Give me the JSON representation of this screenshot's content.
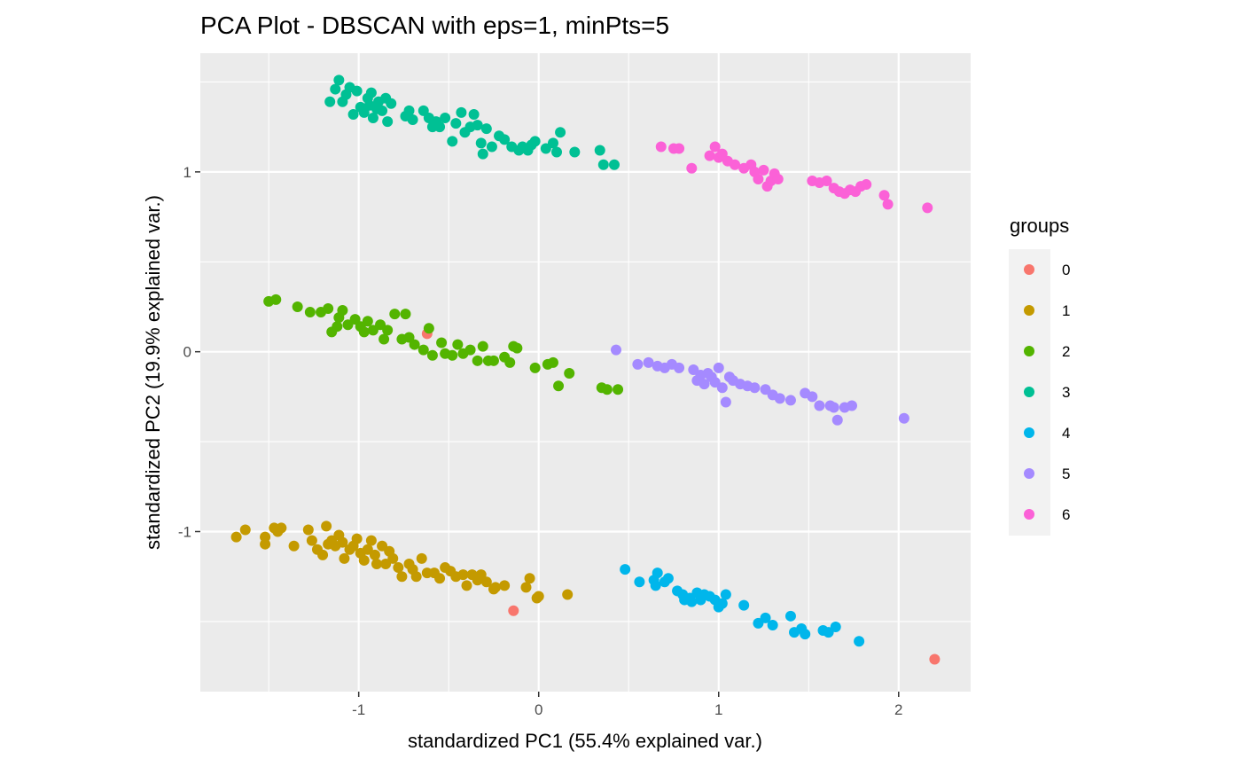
{
  "chart_data": {
    "type": "scatter",
    "title": "PCA Plot - DBSCAN with eps=1, minPts=5",
    "xlabel": "standardized PC1 (55.4% explained var.)",
    "ylabel": "standardized PC2 (19.9% explained var.)",
    "xlim": [
      -1.88,
      2.4
    ],
    "ylim": [
      -1.89,
      1.66
    ],
    "x_ticks": [
      -1,
      0,
      1,
      2
    ],
    "x_tick_labels": [
      "-1",
      "0",
      "1",
      "2"
    ],
    "y_ticks": [
      -1,
      0,
      1
    ],
    "y_tick_labels": [
      "-1",
      "0",
      "1"
    ],
    "grid": true,
    "background": "#EBEBEB",
    "legend": {
      "title": "groups",
      "position": "right"
    },
    "series": [
      {
        "name": "0",
        "color": "#F8766D",
        "points": [
          [
            -0.62,
            0.1
          ],
          [
            -0.14,
            -1.44
          ],
          [
            2.2,
            -1.71
          ]
        ]
      },
      {
        "name": "1",
        "color": "#C49A00",
        "points": [
          [
            -1.68,
            -1.03
          ],
          [
            -1.63,
            -0.99
          ],
          [
            -1.52,
            -1.03
          ],
          [
            -1.52,
            -1.07
          ],
          [
            -1.47,
            -0.98
          ],
          [
            -1.45,
            -1.0
          ],
          [
            -1.43,
            -0.98
          ],
          [
            -1.36,
            -1.08
          ],
          [
            -1.28,
            -0.99
          ],
          [
            -1.26,
            -1.05
          ],
          [
            -1.23,
            -1.1
          ],
          [
            -1.2,
            -1.13
          ],
          [
            -1.18,
            -0.97
          ],
          [
            -1.17,
            -1.07
          ],
          [
            -1.15,
            -1.05
          ],
          [
            -1.13,
            -1.08
          ],
          [
            -1.11,
            -1.02
          ],
          [
            -1.09,
            -1.06
          ],
          [
            -1.08,
            -1.15
          ],
          [
            -1.05,
            -1.1
          ],
          [
            -1.03,
            -1.08
          ],
          [
            -1.01,
            -1.04
          ],
          [
            -0.99,
            -1.12
          ],
          [
            -0.97,
            -1.16
          ],
          [
            -0.95,
            -1.1
          ],
          [
            -0.93,
            -1.05
          ],
          [
            -0.91,
            -1.13
          ],
          [
            -0.9,
            -1.18
          ],
          [
            -0.87,
            -1.08
          ],
          [
            -0.85,
            -1.18
          ],
          [
            -0.83,
            -1.11
          ],
          [
            -0.81,
            -1.15
          ],
          [
            -0.78,
            -1.2
          ],
          [
            -0.76,
            -1.25
          ],
          [
            -0.72,
            -1.18
          ],
          [
            -0.7,
            -1.21
          ],
          [
            -0.68,
            -1.25
          ],
          [
            -0.65,
            -1.15
          ],
          [
            -0.62,
            -1.23
          ],
          [
            -0.58,
            -1.23
          ],
          [
            -0.55,
            -1.26
          ],
          [
            -0.52,
            -1.2
          ],
          [
            -0.49,
            -1.22
          ],
          [
            -0.46,
            -1.25
          ],
          [
            -0.42,
            -1.24
          ],
          [
            -0.4,
            -1.3
          ],
          [
            -0.37,
            -1.24
          ],
          [
            -0.34,
            -1.27
          ],
          [
            -0.32,
            -1.24
          ],
          [
            -0.29,
            -1.28
          ],
          [
            -0.25,
            -1.32
          ],
          [
            -0.24,
            -1.31
          ],
          [
            -0.19,
            -1.3
          ],
          [
            -0.07,
            -1.31
          ],
          [
            -0.05,
            -1.26
          ],
          [
            -0.01,
            -1.37
          ],
          [
            0.0,
            -1.36
          ],
          [
            0.16,
            -1.35
          ]
        ]
      },
      {
        "name": "2",
        "color": "#53B400",
        "points": [
          [
            -1.5,
            0.28
          ],
          [
            -1.46,
            0.29
          ],
          [
            -1.34,
            0.25
          ],
          [
            -1.27,
            0.22
          ],
          [
            -1.21,
            0.22
          ],
          [
            -1.17,
            0.24
          ],
          [
            -1.15,
            0.11
          ],
          [
            -1.12,
            0.14
          ],
          [
            -1.11,
            0.19
          ],
          [
            -1.09,
            0.23
          ],
          [
            -1.06,
            0.15
          ],
          [
            -1.02,
            0.18
          ],
          [
            -0.99,
            0.14
          ],
          [
            -0.97,
            0.11
          ],
          [
            -0.95,
            0.17
          ],
          [
            -0.92,
            0.12
          ],
          [
            -0.88,
            0.15
          ],
          [
            -0.86,
            0.07
          ],
          [
            -0.84,
            0.12
          ],
          [
            -0.8,
            0.21
          ],
          [
            -0.76,
            0.07
          ],
          [
            -0.74,
            0.21
          ],
          [
            -0.72,
            0.08
          ],
          [
            -0.69,
            0.04
          ],
          [
            -0.64,
            0.01
          ],
          [
            -0.61,
            0.13
          ],
          [
            -0.59,
            -0.02
          ],
          [
            -0.54,
            0.05
          ],
          [
            -0.52,
            -0.01
          ],
          [
            -0.48,
            -0.02
          ],
          [
            -0.45,
            0.04
          ],
          [
            -0.42,
            -0.01
          ],
          [
            -0.38,
            0.01
          ],
          [
            -0.34,
            -0.05
          ],
          [
            -0.31,
            0.03
          ],
          [
            -0.28,
            -0.05
          ],
          [
            -0.25,
            -0.05
          ],
          [
            -0.19,
            -0.03
          ],
          [
            -0.16,
            -0.06
          ],
          [
            -0.14,
            0.03
          ],
          [
            -0.12,
            0.02
          ],
          [
            -0.02,
            -0.09
          ],
          [
            0.05,
            -0.07
          ],
          [
            0.08,
            -0.06
          ],
          [
            0.11,
            -0.19
          ],
          [
            0.17,
            -0.12
          ],
          [
            0.35,
            -0.2
          ],
          [
            0.38,
            -0.21
          ],
          [
            0.44,
            -0.21
          ]
        ]
      },
      {
        "name": "3",
        "color": "#00C094",
        "points": [
          [
            -1.16,
            1.39
          ],
          [
            -1.13,
            1.46
          ],
          [
            -1.11,
            1.51
          ],
          [
            -1.09,
            1.39
          ],
          [
            -1.07,
            1.43
          ],
          [
            -1.05,
            1.47
          ],
          [
            -1.03,
            1.32
          ],
          [
            -1.01,
            1.45
          ],
          [
            -0.99,
            1.36
          ],
          [
            -0.97,
            1.33
          ],
          [
            -0.95,
            1.41
          ],
          [
            -0.94,
            1.37
          ],
          [
            -0.93,
            1.44
          ],
          [
            -0.92,
            1.3
          ],
          [
            -0.9,
            1.35
          ],
          [
            -0.89,
            1.39
          ],
          [
            -0.87,
            1.34
          ],
          [
            -0.85,
            1.41
          ],
          [
            -0.84,
            1.28
          ],
          [
            -0.82,
            1.38
          ],
          [
            -0.74,
            1.31
          ],
          [
            -0.72,
            1.34
          ],
          [
            -0.7,
            1.29
          ],
          [
            -0.64,
            1.34
          ],
          [
            -0.61,
            1.3
          ],
          [
            -0.59,
            1.25
          ],
          [
            -0.57,
            1.28
          ],
          [
            -0.55,
            1.25
          ],
          [
            -0.52,
            1.3
          ],
          [
            -0.48,
            1.17
          ],
          [
            -0.46,
            1.27
          ],
          [
            -0.43,
            1.33
          ],
          [
            -0.41,
            1.22
          ],
          [
            -0.38,
            1.25
          ],
          [
            -0.36,
            1.32
          ],
          [
            -0.34,
            1.26
          ],
          [
            -0.32,
            1.16
          ],
          [
            -0.31,
            1.1
          ],
          [
            -0.29,
            1.24
          ],
          [
            -0.26,
            1.14
          ],
          [
            -0.22,
            1.2
          ],
          [
            -0.19,
            1.18
          ],
          [
            -0.15,
            1.14
          ],
          [
            -0.11,
            1.12
          ],
          [
            -0.09,
            1.14
          ],
          [
            -0.06,
            1.12
          ],
          [
            -0.04,
            1.15
          ],
          [
            -0.02,
            1.17
          ],
          [
            0.04,
            1.13
          ],
          [
            0.08,
            1.16
          ],
          [
            0.1,
            1.11
          ],
          [
            0.12,
            1.22
          ],
          [
            0.2,
            1.11
          ],
          [
            0.34,
            1.12
          ],
          [
            0.36,
            1.04
          ],
          [
            0.42,
            1.04
          ]
        ]
      },
      {
        "name": "4",
        "color": "#00B6EB",
        "points": [
          [
            0.48,
            -1.21
          ],
          [
            0.56,
            -1.28
          ],
          [
            0.64,
            -1.27
          ],
          [
            0.65,
            -1.3
          ],
          [
            0.66,
            -1.23
          ],
          [
            0.7,
            -1.28
          ],
          [
            0.72,
            -1.26
          ],
          [
            0.77,
            -1.33
          ],
          [
            0.8,
            -1.35
          ],
          [
            0.81,
            -1.38
          ],
          [
            0.84,
            -1.37
          ],
          [
            0.85,
            -1.39
          ],
          [
            0.88,
            -1.34
          ],
          [
            0.9,
            -1.38
          ],
          [
            0.92,
            -1.35
          ],
          [
            0.95,
            -1.36
          ],
          [
            0.98,
            -1.38
          ],
          [
            1.0,
            -1.42
          ],
          [
            1.02,
            -1.4
          ],
          [
            1.04,
            -1.35
          ],
          [
            1.14,
            -1.41
          ],
          [
            1.22,
            -1.51
          ],
          [
            1.26,
            -1.48
          ],
          [
            1.3,
            -1.52
          ],
          [
            1.4,
            -1.47
          ],
          [
            1.42,
            -1.56
          ],
          [
            1.46,
            -1.54
          ],
          [
            1.48,
            -1.57
          ],
          [
            1.58,
            -1.55
          ],
          [
            1.61,
            -1.56
          ],
          [
            1.65,
            -1.53
          ],
          [
            1.78,
            -1.61
          ]
        ]
      },
      {
        "name": "5",
        "color": "#A58AFF",
        "points": [
          [
            0.43,
            0.01
          ],
          [
            0.55,
            -0.07
          ],
          [
            0.61,
            -0.06
          ],
          [
            0.66,
            -0.08
          ],
          [
            0.7,
            -0.09
          ],
          [
            0.74,
            -0.07
          ],
          [
            0.78,
            -0.09
          ],
          [
            0.86,
            -0.1
          ],
          [
            0.88,
            -0.16
          ],
          [
            0.9,
            -0.13
          ],
          [
            0.92,
            -0.18
          ],
          [
            0.94,
            -0.12
          ],
          [
            0.96,
            -0.14
          ],
          [
            0.98,
            -0.17
          ],
          [
            1.0,
            -0.09
          ],
          [
            1.02,
            -0.2
          ],
          [
            1.04,
            -0.28
          ],
          [
            1.06,
            -0.14
          ],
          [
            1.08,
            -0.16
          ],
          [
            1.12,
            -0.18
          ],
          [
            1.16,
            -0.19
          ],
          [
            1.2,
            -0.2
          ],
          [
            1.26,
            -0.21
          ],
          [
            1.3,
            -0.24
          ],
          [
            1.34,
            -0.26
          ],
          [
            1.4,
            -0.27
          ],
          [
            1.48,
            -0.23
          ],
          [
            1.52,
            -0.25
          ],
          [
            1.56,
            -0.3
          ],
          [
            1.62,
            -0.3
          ],
          [
            1.64,
            -0.31
          ],
          [
            1.66,
            -0.38
          ],
          [
            1.7,
            -0.31
          ],
          [
            1.74,
            -0.3
          ],
          [
            2.03,
            -0.37
          ]
        ]
      },
      {
        "name": "6",
        "color": "#FB61D7",
        "points": [
          [
            0.68,
            1.14
          ],
          [
            0.75,
            1.13
          ],
          [
            0.78,
            1.13
          ],
          [
            0.85,
            1.02
          ],
          [
            0.95,
            1.09
          ],
          [
            0.98,
            1.14
          ],
          [
            1.0,
            1.08
          ],
          [
            1.02,
            1.1
          ],
          [
            1.05,
            1.06
          ],
          [
            1.09,
            1.04
          ],
          [
            1.14,
            1.02
          ],
          [
            1.18,
            1.04
          ],
          [
            1.2,
            1.0
          ],
          [
            1.22,
            0.96
          ],
          [
            1.25,
            1.01
          ],
          [
            1.27,
            0.92
          ],
          [
            1.29,
            0.95
          ],
          [
            1.31,
            0.99
          ],
          [
            1.33,
            0.96
          ],
          [
            1.52,
            0.95
          ],
          [
            1.56,
            0.94
          ],
          [
            1.6,
            0.95
          ],
          [
            1.64,
            0.91
          ],
          [
            1.67,
            0.89
          ],
          [
            1.7,
            0.88
          ],
          [
            1.73,
            0.9
          ],
          [
            1.76,
            0.89
          ],
          [
            1.79,
            0.92
          ],
          [
            1.82,
            0.93
          ],
          [
            1.92,
            0.87
          ],
          [
            1.94,
            0.82
          ],
          [
            2.16,
            0.8
          ]
        ]
      }
    ]
  }
}
